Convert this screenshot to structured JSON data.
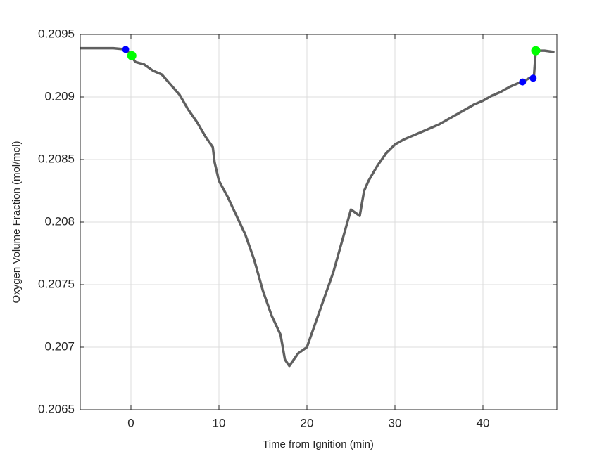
{
  "chart_data": {
    "type": "line",
    "xlabel": "Time from Ignition (min)",
    "ylabel": "Oxygen Volume Fraction (mol/mol)",
    "xlim": [
      -5.76,
      48.4
    ],
    "xticks": [
      0,
      10,
      20,
      30,
      40
    ],
    "ylim": [
      0.2065,
      0.2095
    ],
    "yticks": [
      0.2065,
      0.207,
      0.2075,
      0.208,
      0.2085,
      0.209,
      0.2095
    ],
    "grid": true,
    "series": [
      {
        "type": "line",
        "color": "#606060",
        "x": [
          -5.7,
          -2,
          -0.5,
          0,
          0.5,
          1.5,
          2.5,
          3.5,
          4.5,
          5.5,
          6.5,
          7.5,
          8.5,
          9.3,
          9.5,
          10,
          11,
          12,
          13,
          14,
          15,
          16,
          17,
          17.5,
          18,
          19,
          20,
          21,
          22,
          23,
          24,
          25,
          26,
          26.5,
          27,
          28,
          29,
          30,
          31,
          32,
          33,
          34,
          35,
          36,
          37,
          38,
          39,
          40,
          41,
          42,
          43,
          44,
          45,
          45.8,
          46,
          47,
          48
        ],
        "values": [
          0.20939,
          0.20939,
          0.20938,
          0.20933,
          0.20928,
          0.20926,
          0.20921,
          0.20918,
          0.2091,
          0.20902,
          0.2089,
          0.2088,
          0.20868,
          0.2086,
          0.20848,
          0.20833,
          0.2082,
          0.20805,
          0.2079,
          0.2077,
          0.20745,
          0.20725,
          0.2071,
          0.2069,
          0.20685,
          0.20695,
          0.207,
          0.2072,
          0.2074,
          0.2076,
          0.20785,
          0.2081,
          0.20805,
          0.20825,
          0.20833,
          0.20845,
          0.20855,
          0.20862,
          0.20866,
          0.20869,
          0.20872,
          0.20875,
          0.20878,
          0.20882,
          0.20886,
          0.2089,
          0.20894,
          0.20897,
          0.20901,
          0.20904,
          0.20908,
          0.20911,
          0.20914,
          0.20917,
          0.20937,
          0.20937,
          0.20936
        ]
      },
      {
        "type": "scatter",
        "color": "#0000ff",
        "size": 5,
        "x": [
          -0.6,
          44.5,
          45.7
        ],
        "values": [
          0.20938,
          0.20912,
          0.20915
        ]
      },
      {
        "type": "scatter",
        "color": "#00ff00",
        "size": 6.5,
        "x": [
          0.1,
          46
        ],
        "values": [
          0.20933,
          0.20937
        ]
      }
    ]
  }
}
